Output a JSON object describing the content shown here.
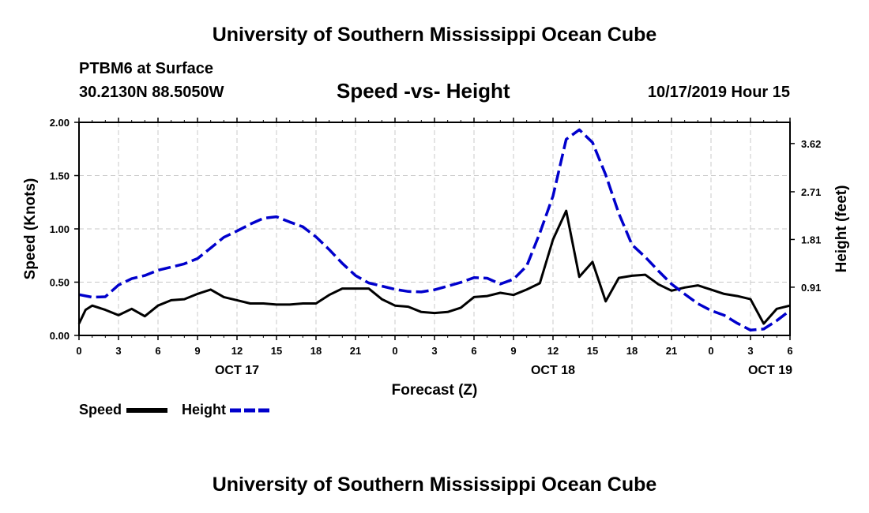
{
  "header": {
    "title_top": "University of Southern Mississippi Ocean Cube",
    "station": "PTBM6 at Surface",
    "coords": "30.2130N 88.5050W",
    "chart_title": "Speed -vs- Height",
    "date": "10/17/2019 Hour 15"
  },
  "footer": {
    "title_bottom": "University of Southern Mississippi Ocean Cube"
  },
  "legend": {
    "speed_label": "Speed",
    "height_label": "Height"
  },
  "colors": {
    "speed": "#000000",
    "height": "#0000cc",
    "grid": "#c8c8c8"
  },
  "chart_data": {
    "type": "line",
    "title": "Speed -vs- Height",
    "xlabel": "Forecast (Z)",
    "ylabel": "Speed (Knots)",
    "y2label": "Height (feet)",
    "xlim": [
      0,
      54
    ],
    "ylim": [
      0,
      2.0
    ],
    "y2lim": [
      0,
      4.02
    ],
    "grid": true,
    "legend_position": "bottom-left",
    "x_ticks": [
      {
        "x": 0,
        "label": "0"
      },
      {
        "x": 3,
        "label": "3"
      },
      {
        "x": 6,
        "label": "6"
      },
      {
        "x": 9,
        "label": "9"
      },
      {
        "x": 12,
        "label": "12"
      },
      {
        "x": 15,
        "label": "15"
      },
      {
        "x": 18,
        "label": "18"
      },
      {
        "x": 21,
        "label": "21"
      },
      {
        "x": 24,
        "label": "0"
      },
      {
        "x": 27,
        "label": "3"
      },
      {
        "x": 30,
        "label": "6"
      },
      {
        "x": 33,
        "label": "9"
      },
      {
        "x": 36,
        "label": "12"
      },
      {
        "x": 39,
        "label": "15"
      },
      {
        "x": 42,
        "label": "18"
      },
      {
        "x": 45,
        "label": "21"
      },
      {
        "x": 48,
        "label": "0"
      },
      {
        "x": 51,
        "label": "3"
      },
      {
        "x": 54,
        "label": "6"
      }
    ],
    "day_labels": [
      {
        "x": 12,
        "label": "OCT 17"
      },
      {
        "x": 36,
        "label": "OCT 18"
      },
      {
        "x": 52.5,
        "label": "OCT 19"
      }
    ],
    "y_ticks": [
      {
        "v": 0.0,
        "label": "0.00"
      },
      {
        "v": 0.5,
        "label": "0.50"
      },
      {
        "v": 1.0,
        "label": "1.00"
      },
      {
        "v": 1.5,
        "label": "1.50"
      },
      {
        "v": 2.0,
        "label": "2.00"
      }
    ],
    "y2_ticks": [
      {
        "v": 0.91,
        "label": "0.91"
      },
      {
        "v": 1.81,
        "label": "1.81"
      },
      {
        "v": 2.71,
        "label": "2.71"
      },
      {
        "v": 3.62,
        "label": "3.62"
      }
    ],
    "series": [
      {
        "name": "Speed",
        "axis": "left",
        "x": [
          0,
          0.5,
          1,
          2,
          3,
          4,
          5,
          6,
          7,
          8,
          9,
          10,
          11,
          12,
          13,
          14,
          15,
          16,
          17,
          18,
          19,
          20,
          21,
          22,
          23,
          24,
          25,
          26,
          27,
          28,
          29,
          30,
          31,
          32,
          33,
          34,
          35,
          36,
          37,
          38,
          39,
          40,
          41,
          42,
          43,
          44,
          45,
          46,
          47,
          48,
          49,
          50,
          51,
          52,
          53,
          54
        ],
        "values": [
          0.11,
          0.24,
          0.28,
          0.24,
          0.19,
          0.25,
          0.18,
          0.28,
          0.33,
          0.34,
          0.39,
          0.43,
          0.36,
          0.33,
          0.3,
          0.3,
          0.29,
          0.29,
          0.3,
          0.3,
          0.38,
          0.44,
          0.44,
          0.44,
          0.34,
          0.28,
          0.27,
          0.22,
          0.21,
          0.22,
          0.26,
          0.36,
          0.37,
          0.4,
          0.38,
          0.43,
          0.49,
          0.9,
          1.17,
          0.55,
          0.69,
          0.32,
          0.54,
          0.56,
          0.57,
          0.48,
          0.42,
          0.45,
          0.47,
          0.43,
          0.39,
          0.37,
          0.34,
          0.11,
          0.25,
          0.28
        ]
      },
      {
        "name": "Height",
        "axis": "right",
        "x": [
          0,
          1,
          2,
          3,
          4,
          5,
          6,
          7,
          8,
          9,
          10,
          11,
          12,
          13,
          14,
          15,
          16,
          17,
          18,
          19,
          20,
          21,
          22,
          23,
          24,
          25,
          26,
          27,
          28,
          29,
          30,
          31,
          32,
          33,
          34,
          35,
          36,
          37,
          38,
          39,
          40,
          41,
          42,
          43,
          44,
          45,
          46,
          47,
          48,
          49,
          50,
          51,
          52,
          53,
          54
        ],
        "values": [
          0.77,
          0.72,
          0.73,
          0.95,
          1.07,
          1.13,
          1.23,
          1.29,
          1.35,
          1.45,
          1.65,
          1.85,
          1.97,
          2.1,
          2.21,
          2.24,
          2.14,
          2.05,
          1.86,
          1.62,
          1.36,
          1.13,
          0.99,
          0.93,
          0.87,
          0.83,
          0.82,
          0.86,
          0.93,
          1.0,
          1.09,
          1.08,
          0.97,
          1.06,
          1.31,
          1.93,
          2.63,
          3.7,
          3.88,
          3.64,
          3.03,
          2.3,
          1.71,
          1.48,
          1.22,
          0.97,
          0.78,
          0.6,
          0.47,
          0.38,
          0.23,
          0.1,
          0.12,
          0.28,
          0.47
        ]
      }
    ]
  }
}
